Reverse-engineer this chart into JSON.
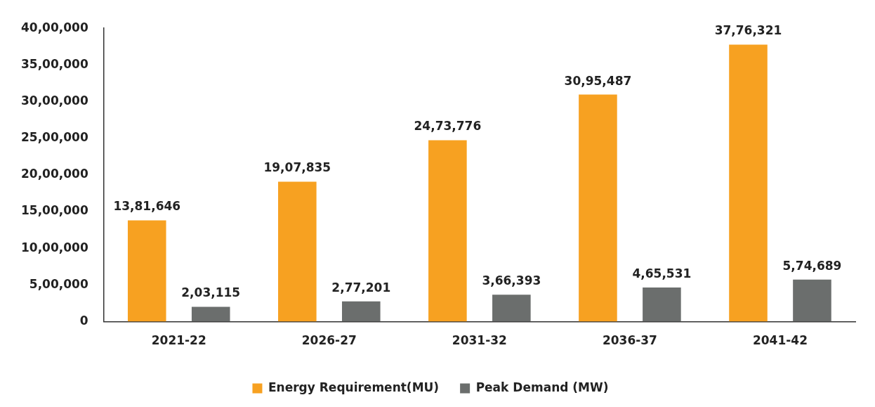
{
  "chart_data": {
    "type": "bar",
    "categories": [
      "2021-22",
      "2026-27",
      "2031-32",
      "2036-37",
      "2041-42"
    ],
    "series": [
      {
        "name": "Energy Requirement(MU)",
        "color": "#f7a121",
        "values": [
          1381646,
          1907835,
          2473776,
          3095487,
          3776321
        ],
        "value_labels": [
          "13,81,646",
          "19,07,835",
          "24,73,776",
          "30,95,487",
          "37,76,321"
        ]
      },
      {
        "name": "Peak Demand (MW)",
        "color": "#6b6e6d",
        "values": [
          203115,
          277201,
          366393,
          465531,
          574689
        ],
        "value_labels": [
          "2,03,115",
          "2,77,201",
          "3,66,393",
          "4,65,531",
          "5,74,689"
        ]
      }
    ],
    "ylim": [
      0,
      4000000
    ],
    "yticks": [
      {
        "value": 0,
        "label": "0"
      },
      {
        "value": 500000,
        "label": "5,00,000"
      },
      {
        "value": 1000000,
        "label": "10,00,000"
      },
      {
        "value": 1500000,
        "label": "15,00,000"
      },
      {
        "value": 2000000,
        "label": "20,00,000"
      },
      {
        "value": 2500000,
        "label": "25,00,000"
      },
      {
        "value": 3000000,
        "label": "30,00,000"
      },
      {
        "value": 3500000,
        "label": "35,00,000"
      },
      {
        "value": 4000000,
        "label": "40,00,000"
      }
    ],
    "grid": false,
    "legend": "bottom"
  }
}
